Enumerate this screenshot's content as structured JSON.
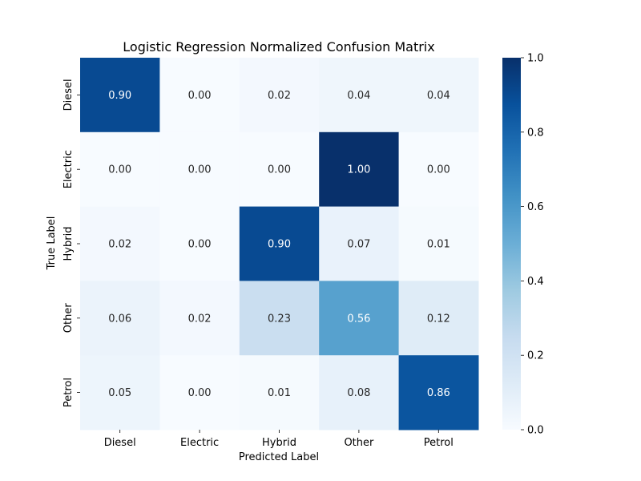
{
  "chart_data": {
    "type": "heatmap",
    "title": "Logistic Regression Normalized Confusion Matrix",
    "xlabel": "Predicted Label",
    "ylabel": "True Label",
    "x_categories": [
      "Diesel",
      "Electric",
      "Hybrid",
      "Other",
      "Petrol"
    ],
    "y_categories": [
      "Diesel",
      "Electric",
      "Hybrid",
      "Other",
      "Petrol"
    ],
    "values": [
      [
        0.9,
        0.0,
        0.02,
        0.04,
        0.04
      ],
      [
        0.0,
        0.0,
        0.0,
        1.0,
        0.0
      ],
      [
        0.02,
        0.0,
        0.9,
        0.07,
        0.01
      ],
      [
        0.06,
        0.02,
        0.23,
        0.56,
        0.12
      ],
      [
        0.05,
        0.0,
        0.01,
        0.08,
        0.86
      ]
    ],
    "colorbar": {
      "range": [
        0.0,
        1.0
      ],
      "ticks": [
        "0.0",
        "0.2",
        "0.4",
        "0.6",
        "0.8",
        "1.0"
      ],
      "colormap": "Blues"
    },
    "annotate_format": "0.00"
  }
}
